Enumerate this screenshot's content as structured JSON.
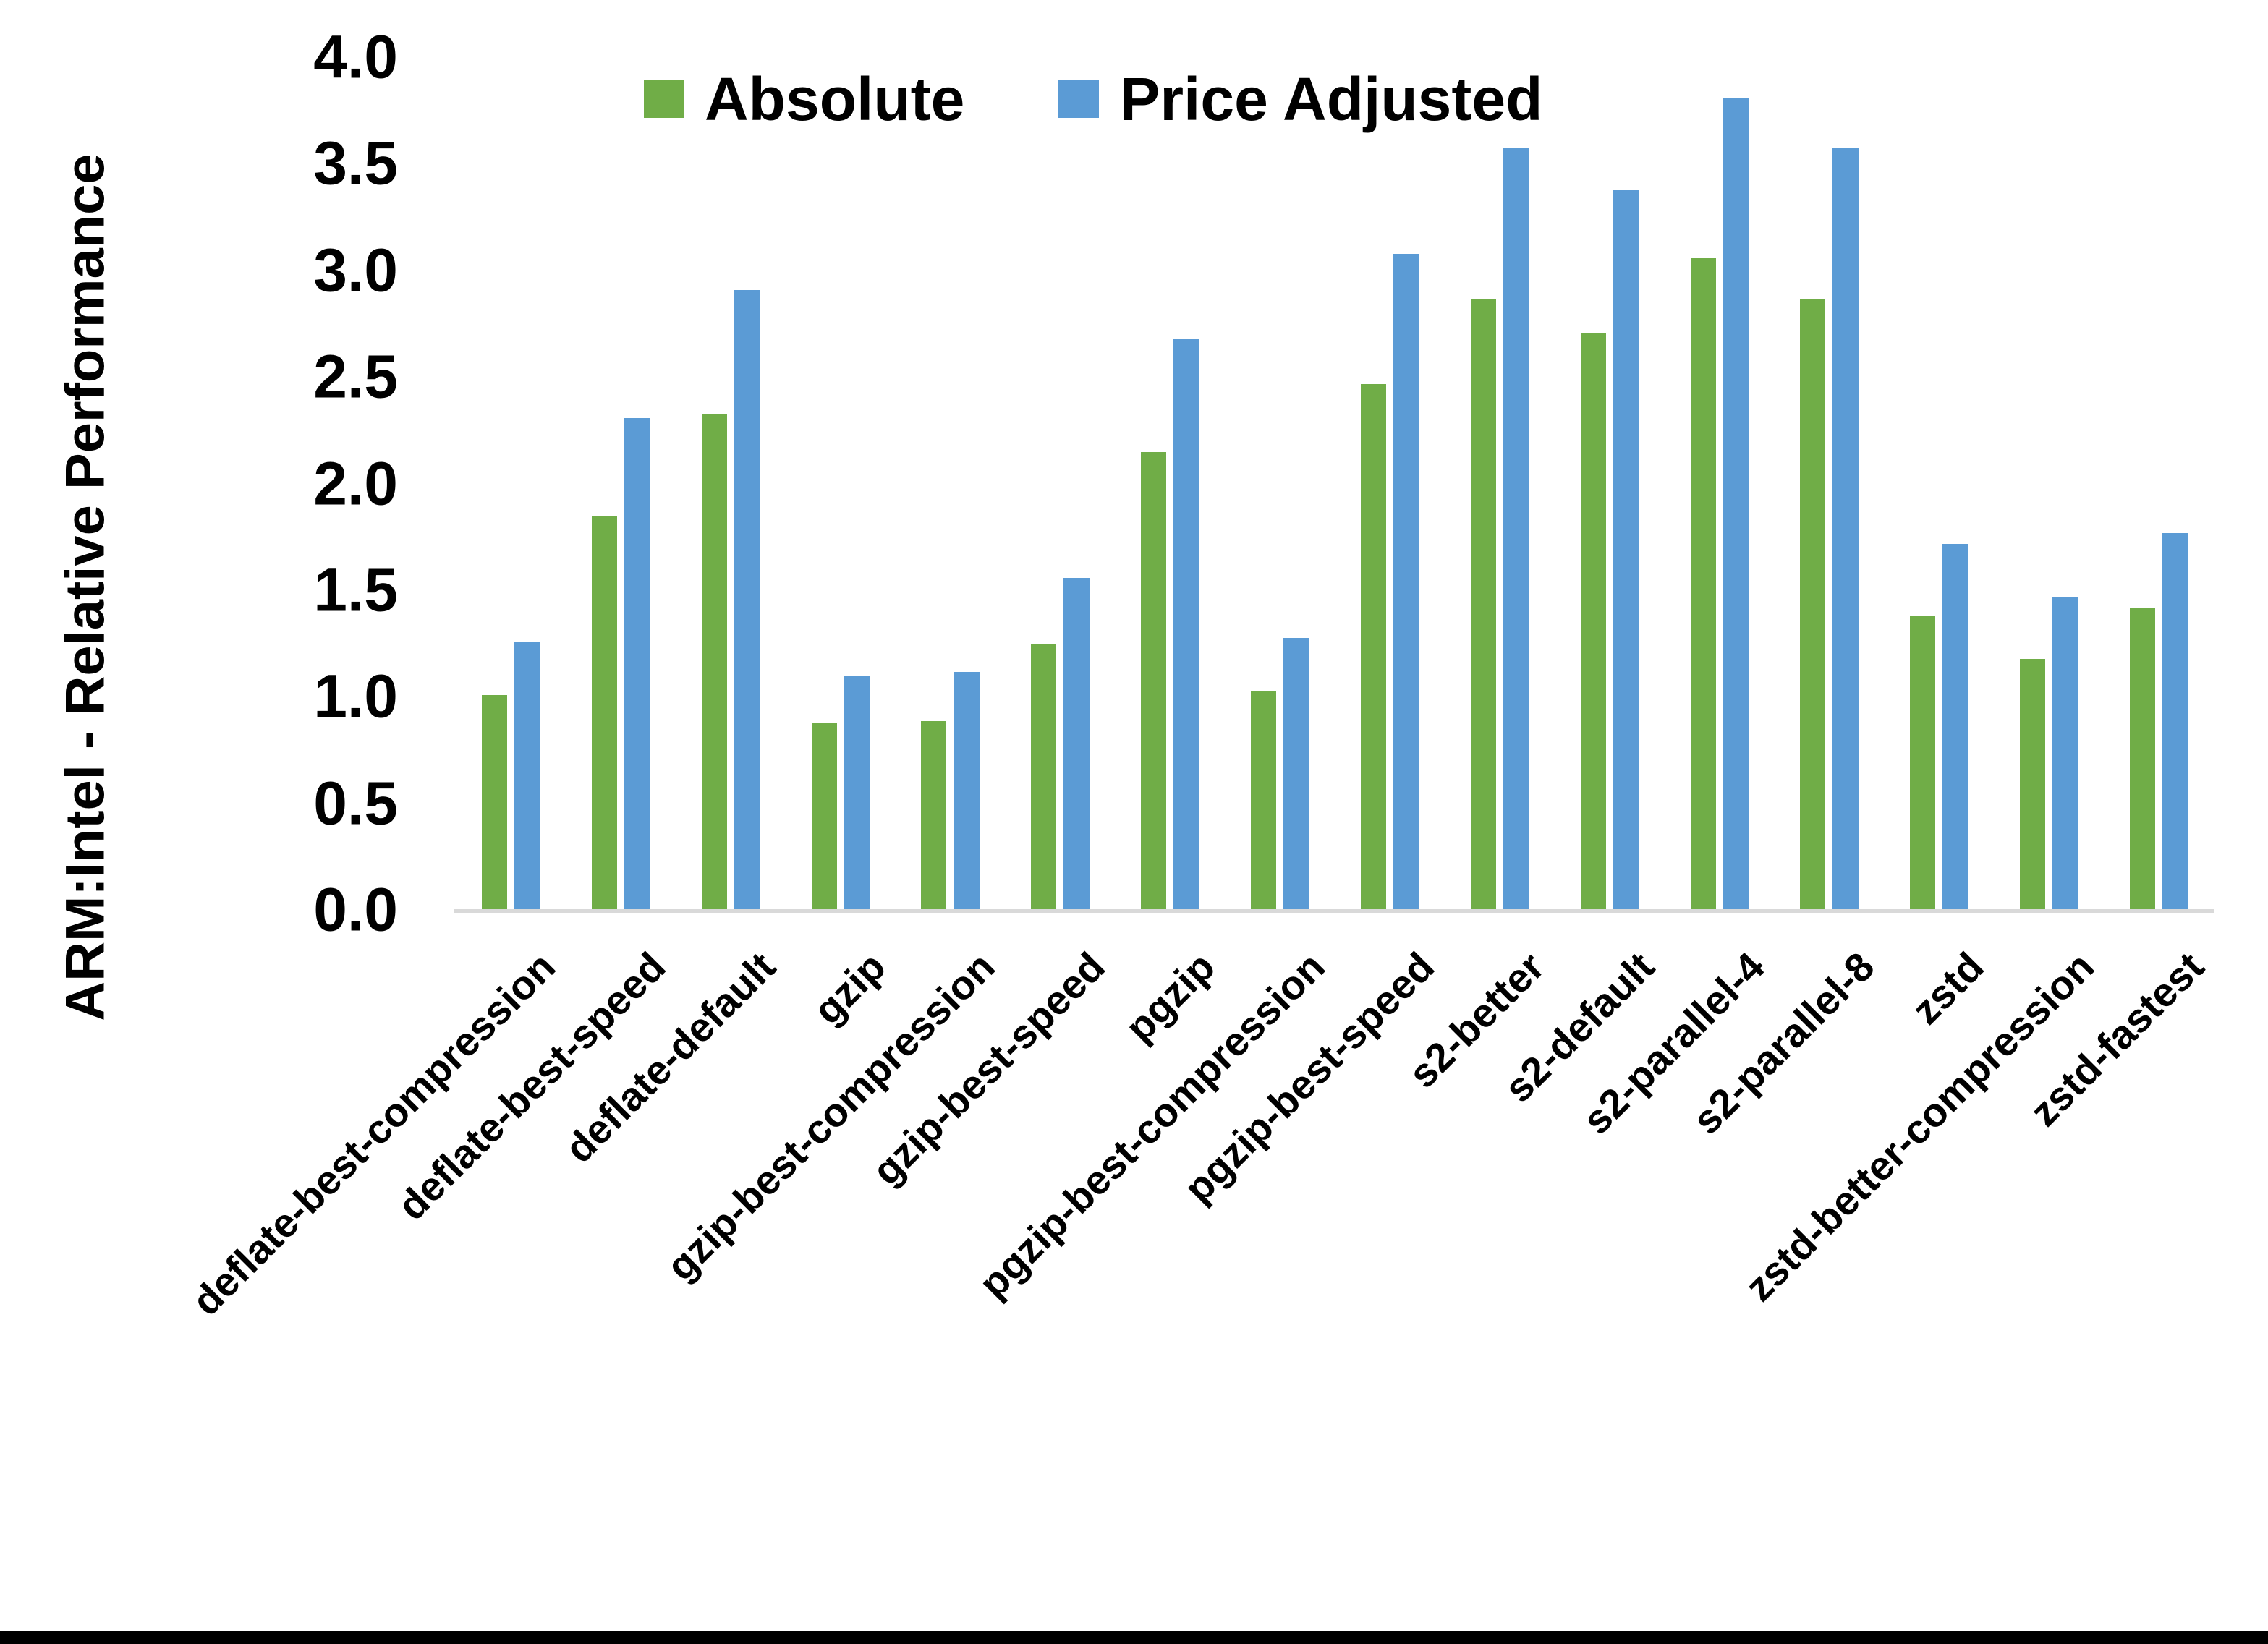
{
  "chart_data": {
    "type": "bar",
    "title": "",
    "xlabel": "",
    "ylabel": "ARM:Intel - Relative Performance",
    "ylim": [
      0.0,
      4.0
    ],
    "ytick_step": 0.5,
    "yticks": [
      "0.0",
      "0.5",
      "1.0",
      "1.5",
      "2.0",
      "2.5",
      "3.0",
      "3.5",
      "4.0"
    ],
    "grid": false,
    "legend_position": "top-center",
    "categories": [
      "deflate-best-compression",
      "deflate-best-speed",
      "deflate-default",
      "gzip",
      "gzip-best-compression",
      "gzip-best-speed",
      "pgzip",
      "pgzip-best-compression",
      "pgzip-best-speed",
      "s2-better",
      "s2-default",
      "s2-parallel-4",
      "s2-parallel-8",
      "zstd",
      "zstd-better-compression",
      "zstd-fastest"
    ],
    "series": [
      {
        "name": "Absolute",
        "color": "#70AD47",
        "values": [
          1.01,
          1.85,
          2.33,
          0.88,
          0.89,
          1.25,
          2.15,
          1.03,
          2.47,
          2.87,
          2.71,
          3.06,
          2.87,
          1.38,
          1.18,
          1.42
        ]
      },
      {
        "name": "Price Adjusted",
        "color": "#5B9BD5",
        "values": [
          1.26,
          2.31,
          2.91,
          1.1,
          1.12,
          1.56,
          2.68,
          1.28,
          3.08,
          3.58,
          3.38,
          3.81,
          3.58,
          1.72,
          1.47,
          1.77
        ]
      }
    ]
  },
  "colors": {
    "background": "#FFFFFF",
    "axis_line": "#D9D9D9",
    "text": "#000000",
    "bottom_bar": "#000000"
  }
}
